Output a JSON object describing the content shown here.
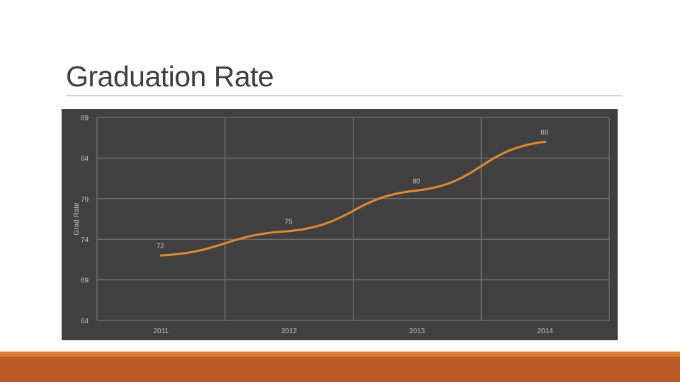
{
  "slide": {
    "title": "Graduation Rate"
  },
  "chart_data": {
    "type": "line",
    "title": "",
    "xlabel": "",
    "ylabel": "Grad Rate",
    "categories": [
      "2011",
      "2012",
      "2013",
      "2014"
    ],
    "series": [
      {
        "values": [
          72,
          75,
          80,
          86
        ],
        "color": "#e08a2c"
      }
    ],
    "data_labels": [
      "72",
      "75",
      "80",
      "86"
    ],
    "ylim": [
      64,
      89
    ],
    "yticks": [
      64,
      69,
      74,
      79,
      84,
      89
    ],
    "ytick_labels": [
      "64",
      "69",
      "74",
      "79",
      "84",
      "89"
    ],
    "grid": true,
    "legend": "none"
  },
  "colors": {
    "plot_background": "#404040",
    "gridline": "#7f7f7f",
    "tick_text": "#bfbfbf",
    "footer_light": "#de7e2e",
    "footer_dark": "#be5a28"
  }
}
